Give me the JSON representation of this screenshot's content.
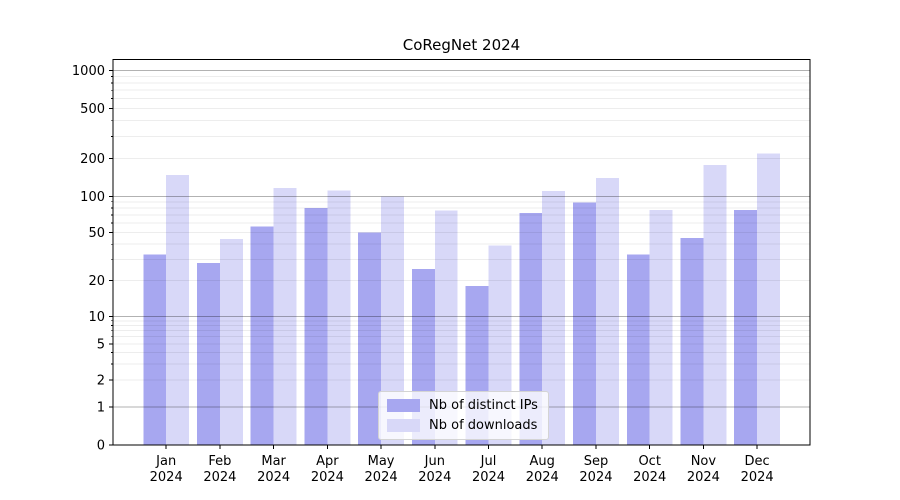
{
  "chart_data": {
    "type": "bar",
    "title": "CoRegNet 2024",
    "categories": [
      "Jan 2024",
      "Feb 2024",
      "Mar 2024",
      "Apr 2024",
      "May 2024",
      "Jun 2024",
      "Jul 2024",
      "Aug 2024",
      "Sep 2024",
      "Oct 2024",
      "Nov 2024",
      "Dec 2024"
    ],
    "series": [
      {
        "name": "Nb of distinct IPs",
        "color": "#a7a7f0",
        "values": [
          33,
          28,
          56,
          80,
          50,
          25,
          18,
          73,
          89,
          33,
          45,
          77
        ]
      },
      {
        "name": "Nb of downloads",
        "color": "#d8d8f8",
        "values": [
          148,
          44,
          116,
          111,
          100,
          76,
          39,
          110,
          140,
          77,
          177,
          220
        ]
      }
    ],
    "yticks": [
      0,
      1,
      2,
      5,
      10,
      20,
      50,
      100,
      200,
      500,
      1000
    ],
    "yscale": "log-above-1 with 0 baseline",
    "ylim": [
      0,
      1220
    ],
    "xlabel": "",
    "ylabel": "",
    "grid": true,
    "legend_position": "bottom-center"
  },
  "colors": {
    "grid_minor": "rgba(0,0,0,0.07)",
    "grid_major": "rgba(0,0,0,0.30)",
    "axis": "#000000",
    "background": "#ffffff"
  }
}
